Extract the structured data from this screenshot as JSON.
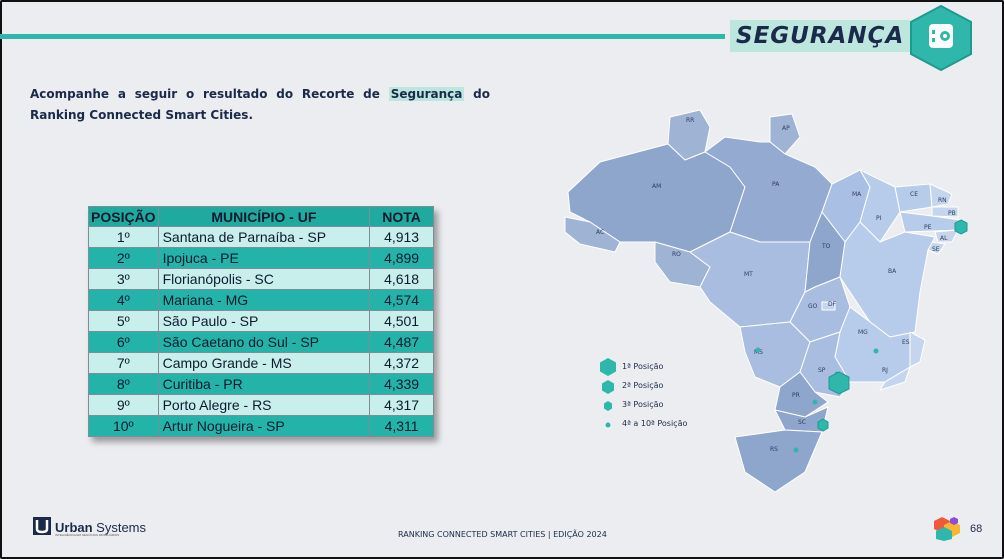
{
  "header": {
    "title": "SEGURANÇA",
    "icon": "safe-icon",
    "accent_color": "#2fb7ac"
  },
  "intro": {
    "before": "Acompanhe a seguir o resultado do Recorte de ",
    "highlight": "Segurança",
    "after": " do Ranking Connected Smart Cities."
  },
  "table": {
    "headers": [
      "POSIÇÃO",
      "MUNICÍPIO - UF",
      "NOTA"
    ],
    "rows": [
      {
        "pos": "1º",
        "municipio": "Santana de Parnaíba - SP",
        "nota": "4,913"
      },
      {
        "pos": "2º",
        "municipio": "Ipojuca - PE",
        "nota": "4,899"
      },
      {
        "pos": "3º",
        "municipio": "Florianópolis - SC",
        "nota": "4,618"
      },
      {
        "pos": "4º",
        "municipio": "Mariana - MG",
        "nota": "4,574"
      },
      {
        "pos": "5º",
        "municipio": "São Paulo - SP",
        "nota": "4,501"
      },
      {
        "pos": "6º",
        "municipio": "São Caetano do Sul - SP",
        "nota": "4,487"
      },
      {
        "pos": "7º",
        "municipio": "Campo Grande - MS",
        "nota": "4,372"
      },
      {
        "pos": "8º",
        "municipio": "Curitiba - PR",
        "nota": "4,339"
      },
      {
        "pos": "9º",
        "municipio": "Porto Alegre - RS",
        "nota": "4,317"
      },
      {
        "pos": "10º",
        "municipio": "Artur Nogueira - SP",
        "nota": "4,311"
      }
    ]
  },
  "map": {
    "state_labels": [
      "RR",
      "AP",
      "AM",
      "PA",
      "MA",
      "CE",
      "RN",
      "PB",
      "PI",
      "PE",
      "AL",
      "SE",
      "AC",
      "RO",
      "TO",
      "BA",
      "MT",
      "GO",
      "DF",
      "MG",
      "ES",
      "MS",
      "SP",
      "RJ",
      "PR",
      "SC",
      "RS"
    ]
  },
  "legend": [
    {
      "label": "1ª Posição"
    },
    {
      "label": "2ª Posição"
    },
    {
      "label": "3ª Posição"
    },
    {
      "label": "4ª a 10ª Posição"
    }
  ],
  "footer": {
    "brand_bold": "Urban",
    "brand_rest": " Systems",
    "brand_sub": "INTELIGÊNCIA EM NEGÓCIOS IMOBILIÁRIOS",
    "center": "RANKING CONNECTED SMART CITIES | EDIÇÃO 2024",
    "page": "68"
  }
}
